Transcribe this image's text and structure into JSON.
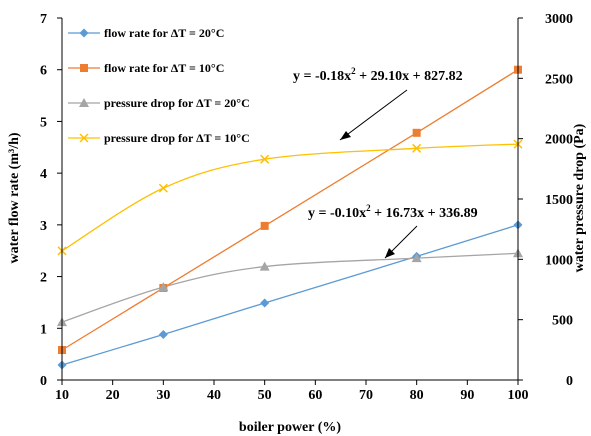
{
  "chart_data": {
    "type": "scatter",
    "xlabel": "boiler power (%)",
    "ylabel_left": "water flow rate (m³/h)",
    "ylabel_right": "water pressure drop (Pa)",
    "xlim": [
      10,
      100
    ],
    "ylim_left": [
      0,
      7
    ],
    "ylim_right": [
      0,
      3000
    ],
    "x_ticks": [
      "10",
      "20",
      "30",
      "40",
      "50",
      "60",
      "70",
      "80",
      "90",
      "100"
    ],
    "y_left_ticks": [
      "0",
      "1",
      "2",
      "3",
      "4",
      "5",
      "6",
      "7"
    ],
    "y_right_ticks": [
      "0",
      "500",
      "1000",
      "1500",
      "2000",
      "2500",
      "3000"
    ],
    "grid": false,
    "legend_position": "top-left",
    "series": [
      {
        "name": "flow rate for ΔT = 20°C",
        "axis": "left",
        "marker": "diamond",
        "color": "#5B9BD5",
        "trend": "line",
        "x": [
          10,
          30,
          50,
          80,
          100
        ],
        "y": [
          0.29,
          0.88,
          1.49,
          2.39,
          3.0
        ]
      },
      {
        "name": "flow rate for ΔT = 10°C",
        "axis": "left",
        "marker": "square",
        "color": "#ED7D31",
        "trend": "line",
        "x": [
          10,
          30,
          50,
          80,
          100
        ],
        "y": [
          0.58,
          1.78,
          2.98,
          4.78,
          6.0
        ]
      },
      {
        "name": "pressure drop for ΔT = 20°C",
        "axis": "right",
        "marker": "triangle",
        "color": "#A5A5A5",
        "trend": "poly2",
        "x": [
          10,
          30,
          50,
          80,
          100
        ],
        "y": [
          480,
          770,
          940,
          1010,
          1050
        ],
        "fit": [
          -0.1,
          16.73,
          336.89
        ]
      },
      {
        "name": "pressure drop for ΔT = 10°C",
        "axis": "right",
        "marker": "x",
        "color": "#FFC000",
        "trend": "poly2",
        "x": [
          10,
          30,
          50,
          80,
          100
        ],
        "y": [
          1070,
          1590,
          1830,
          1920,
          1955
        ],
        "fit": [
          -0.18,
          29.1,
          827.82
        ]
      }
    ],
    "annotations": [
      {
        "equation_prefix": "y = -0.18x",
        "sup": "2",
        "equation_suffix": " + 29.10x + 827.82"
      },
      {
        "equation_prefix": "y = -0.10x",
        "sup": "2",
        "equation_suffix": " + 16.73x + 336.89"
      }
    ]
  }
}
